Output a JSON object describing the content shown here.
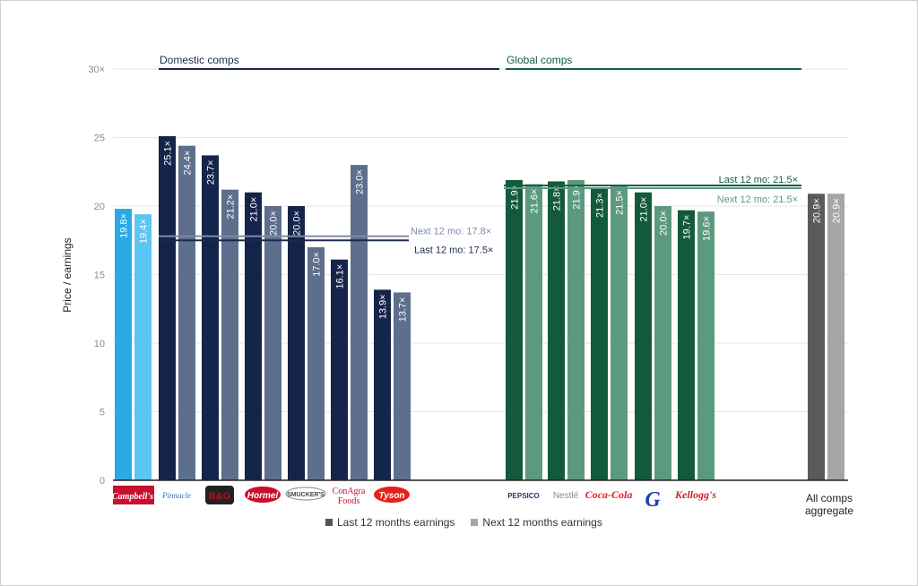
{
  "chart_data": {
    "type": "bar",
    "ylabel": "Price / earnings",
    "ylim": [
      0,
      30
    ],
    "yticks": [
      "0",
      "5",
      "10",
      "15",
      "20",
      "25",
      "30×"
    ],
    "groups": [
      {
        "name": "Domestic comps",
        "color": "#1a2a4e"
      },
      {
        "name": "Global comps",
        "color": "#15603f"
      }
    ],
    "companies": [
      {
        "name": "Campbell's",
        "logo": "Campbell's",
        "logo_color": "#c8102e",
        "ltm": 19.8,
        "ntm": 19.4,
        "ltm_label": "19.8×",
        "ntm_label": "19.4×",
        "colors": [
          "#29a9e6",
          "#5cc6f2"
        ]
      },
      {
        "name": "Pinnacle",
        "logo": "Pinnacle",
        "logo_color": "#3a6ea5",
        "ltm": 25.1,
        "ntm": 24.4,
        "ltm_label": "25.1×",
        "ntm_label": "24.4×",
        "colors": [
          "#15244a",
          "#5d6f8c"
        ]
      },
      {
        "name": "B&G",
        "logo": "B&G",
        "logo_color": "#b5121b",
        "ltm": 23.7,
        "ntm": 21.2,
        "ltm_label": "23.7×",
        "ntm_label": "21.2×",
        "colors": [
          "#15244a",
          "#5d6f8c"
        ]
      },
      {
        "name": "Hormel",
        "logo": "Hormel",
        "logo_color": "#c8102e",
        "ltm": 21.0,
        "ntm": 20.0,
        "ltm_label": "21.0×",
        "ntm_label": "20.0×",
        "colors": [
          "#15244a",
          "#5d6f8c"
        ]
      },
      {
        "name": "Smucker's",
        "logo": "SMUCKER'S",
        "logo_color": "#444444",
        "ltm": 20.0,
        "ntm": 17.0,
        "ltm_label": "20.0×",
        "ntm_label": "17.0×",
        "colors": [
          "#15244a",
          "#5d6f8c"
        ]
      },
      {
        "name": "ConAgra Foods",
        "logo": "ConAgra Foods",
        "logo_color": "#c8102e",
        "ltm": 16.1,
        "ntm": 23.0,
        "ltm_label": "16.1×",
        "ntm_label": "23.0×",
        "colors": [
          "#15244a",
          "#5d6f8c"
        ]
      },
      {
        "name": "Tyson",
        "logo": "Tyson",
        "logo_color": "#e2231a",
        "ltm": 13.9,
        "ntm": 13.7,
        "ltm_label": "13.9×",
        "ntm_label": "13.7×",
        "colors": [
          "#15244a",
          "#5d6f8c"
        ]
      },
      {
        "name": "PepsiCo",
        "logo": "PEPSICO",
        "logo_color": "#1f3b6e",
        "ltm": 21.9,
        "ntm": 21.6,
        "ltm_label": "21.9×",
        "ntm_label": "21.6×",
        "colors": [
          "#135a3c",
          "#5c9a80"
        ]
      },
      {
        "name": "Nestlé",
        "logo": "Nestlé",
        "logo_color": "#8a8a8a",
        "ltm": 21.8,
        "ntm": 21.9,
        "ltm_label": "21.8×",
        "ntm_label": "21.9×",
        "colors": [
          "#135a3c",
          "#5c9a80"
        ]
      },
      {
        "name": "Coca-Cola",
        "logo": "Coca-Cola",
        "logo_color": "#e61a27",
        "ltm": 21.3,
        "ntm": 21.5,
        "ltm_label": "21.3×",
        "ntm_label": "21.5×",
        "colors": [
          "#135a3c",
          "#5c9a80"
        ]
      },
      {
        "name": "General Mills",
        "logo": "G",
        "logo_color": "#1f3fa8",
        "ltm": 21.0,
        "ntm": 20.0,
        "ltm_label": "21.0×",
        "ntm_label": "20.0×",
        "colors": [
          "#135a3c",
          "#5c9a80"
        ]
      },
      {
        "name": "Kellogg's",
        "logo": "Kellogg's",
        "logo_color": "#d4202a",
        "ltm": 19.7,
        "ntm": 19.6,
        "ltm_label": "19.7×",
        "ntm_label": "19.6×",
        "colors": [
          "#135a3c",
          "#5c9a80"
        ]
      },
      {
        "name": "All comps aggregate",
        "logo": "",
        "logo_color": "#222222",
        "ltm": 20.9,
        "ntm": 20.9,
        "ltm_label": "20.9×",
        "ntm_label": "20.9×",
        "colors": [
          "#5a5a5a",
          "#a6a6a6"
        ]
      }
    ],
    "reference_lines": [
      {
        "group": "Domestic comps",
        "label": "Next 12 mo: 17.8×",
        "value": 17.8,
        "color": "#7e8ca6"
      },
      {
        "group": "Domestic comps",
        "label": "Last 12 mo: 17.5×",
        "value": 17.5,
        "color": "#1a2a4e"
      },
      {
        "group": "Global comps",
        "label": "Last 12 mo: 21.5×",
        "value": 21.5,
        "color": "#15603f"
      },
      {
        "group": "Global comps",
        "label": "Next 12 mo: 21.5×",
        "value": 21.5,
        "color": "#5c9a80"
      }
    ],
    "legend": [
      {
        "label": "Last 12 months earnings",
        "color": "#555555"
      },
      {
        "label": "Next 12 months earnings",
        "color": "#a6a6a6"
      }
    ],
    "aggregate_label": [
      "All comps",
      "aggregate"
    ],
    "grid": true,
    "legend_position": "bottom"
  }
}
